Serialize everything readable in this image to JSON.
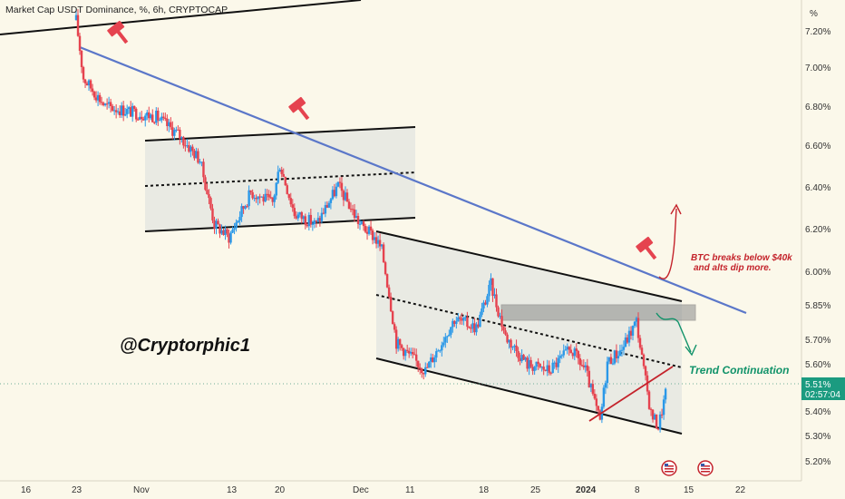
{
  "chart_data": {
    "type": "candlestick",
    "title": "Market Cap USDT Dominance, %, 6h, CRYPTOCAP",
    "watermark": "@Cryptorphic1",
    "y_unit_label": "%",
    "y_ticks": [
      "7.20%",
      "7.00%",
      "6.80%",
      "6.60%",
      "6.40%",
      "6.20%",
      "6.00%",
      "5.85%",
      "5.70%",
      "5.60%",
      "5.40%",
      "5.30%",
      "5.20%"
    ],
    "x_ticks": [
      "16",
      "23",
      "Nov",
      "13",
      "20",
      "Dec",
      "11",
      "18",
      "25",
      "2024",
      "8",
      "15",
      "22"
    ],
    "last_price": "5.51%",
    "countdown": "02:57:04",
    "annotations": {
      "bearish_note_line1": "BTC breaks below $40k",
      "bearish_note_line2": "and alts dip more.",
      "bullish_note": "Trend Continuation"
    },
    "colors": {
      "up": "#2a98e8",
      "down": "#e5434f",
      "trendline": "#5b77c9",
      "bg": "#fbf8ea",
      "note_red": "#c4232b",
      "note_green": "#12936a",
      "last_price_badge": "#1b9b80"
    },
    "path_anchors": [
      {
        "date": "Oct 23",
        "value": 7.25
      },
      {
        "date": "Oct 24",
        "value": 6.98
      },
      {
        "date": "Oct 27",
        "value": 6.85
      },
      {
        "date": "Oct 31",
        "value": 6.82
      },
      {
        "date": "Nov 3",
        "value": 6.8
      },
      {
        "date": "Nov 6",
        "value": 6.72
      },
      {
        "date": "Nov 9",
        "value": 6.6
      },
      {
        "date": "Nov 11",
        "value": 6.3
      },
      {
        "date": "Nov 13",
        "value": 6.24
      },
      {
        "date": "Nov 16",
        "value": 6.45
      },
      {
        "date": "Nov 19",
        "value": 6.4
      },
      {
        "date": "Nov 20",
        "value": 6.58
      },
      {
        "date": "Nov 22",
        "value": 6.35
      },
      {
        "date": "Nov 25",
        "value": 6.3
      },
      {
        "date": "Nov 28",
        "value": 6.48
      },
      {
        "date": "Dec 1",
        "value": 6.3
      },
      {
        "date": "Dec 3",
        "value": 6.24
      },
      {
        "date": "Dec 4",
        "value": 6.18
      },
      {
        "date": "Dec 5",
        "value": 5.98
      },
      {
        "date": "Dec 6",
        "value": 5.75
      },
      {
        "date": "Dec 10",
        "value": 5.62
      },
      {
        "date": "Dec 14",
        "value": 5.86
      },
      {
        "date": "Dec 17",
        "value": 5.82
      },
      {
        "date": "Dec 19",
        "value": 6.02
      },
      {
        "date": "Dec 21",
        "value": 5.78
      },
      {
        "date": "Dec 24",
        "value": 5.65
      },
      {
        "date": "Dec 27",
        "value": 5.62
      },
      {
        "date": "Dec 30",
        "value": 5.72
      },
      {
        "date": "Jan 1",
        "value": 5.62
      },
      {
        "date": "Jan 3",
        "value": 5.38
      },
      {
        "date": "Jan 4",
        "value": 5.66
      },
      {
        "date": "Jan 6",
        "value": 5.72
      },
      {
        "date": "Jan 8",
        "value": 5.85
      },
      {
        "date": "Jan 9",
        "value": 5.62
      },
      {
        "date": "Jan 10",
        "value": 5.42
      },
      {
        "date": "Jan 11",
        "value": 5.36
      },
      {
        "date": "Jan 12",
        "value": 5.51
      }
    ]
  }
}
